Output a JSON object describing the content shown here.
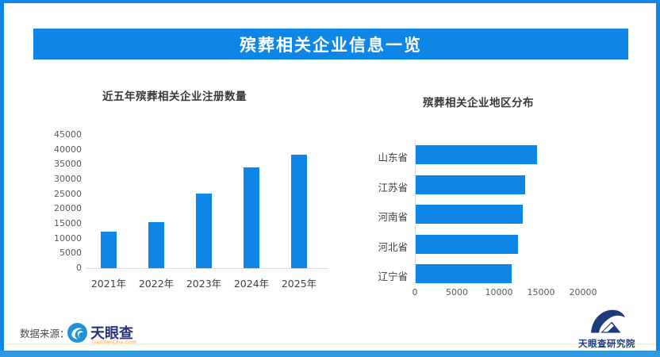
{
  "page": {
    "title_banner": "殡葬相关企业信息一览",
    "colors": {
      "accent_blue": "#0d86e8",
      "bottom_bar_blue": "#2f9ade",
      "axis_gray": "#dcdcdc",
      "tick_gray": "#595959",
      "label_dark": "#3f3f3f",
      "brand_navy": "#27337b",
      "logo_navy": "#1e3b7c",
      "brand_orange": "#f0a43c",
      "divider_yellow": "#faf3d2"
    }
  },
  "chart_data": [
    {
      "type": "bar",
      "orientation": "vertical",
      "title": "近五年殡葬相关企业注册数量",
      "categories": [
        "2021年",
        "2022年",
        "2023年",
        "2024年",
        "2025年"
      ],
      "values": [
        12400,
        15500,
        25200,
        34100,
        38200
      ],
      "xlabel": "",
      "ylabel": "",
      "ylim": [
        0,
        45000
      ],
      "yticks": [
        0,
        5000,
        10000,
        15000,
        20000,
        25000,
        30000,
        35000,
        40000,
        45000
      ],
      "grid": false,
      "legend": false,
      "bar_color": "#0d86e8"
    },
    {
      "type": "bar",
      "orientation": "horizontal",
      "title": "殡葬相关企业地区分布",
      "categories": [
        "山东省",
        "江苏省",
        "河南省",
        "河北省",
        "辽宁省"
      ],
      "values": [
        14400,
        13000,
        12700,
        12200,
        11400
      ],
      "xlabel": "",
      "ylabel": "",
      "xlim": [
        0,
        22000
      ],
      "xticks": [
        0,
        5000,
        10000,
        15000,
        20000
      ],
      "grid": false,
      "legend": false,
      "bar_color": "#0d86e8"
    }
  ],
  "footer": {
    "source_label": "数据来源：",
    "brand_name": "天眼查",
    "brand_sub": "TianYanCha.com",
    "research_name": "天眼查研究院"
  }
}
